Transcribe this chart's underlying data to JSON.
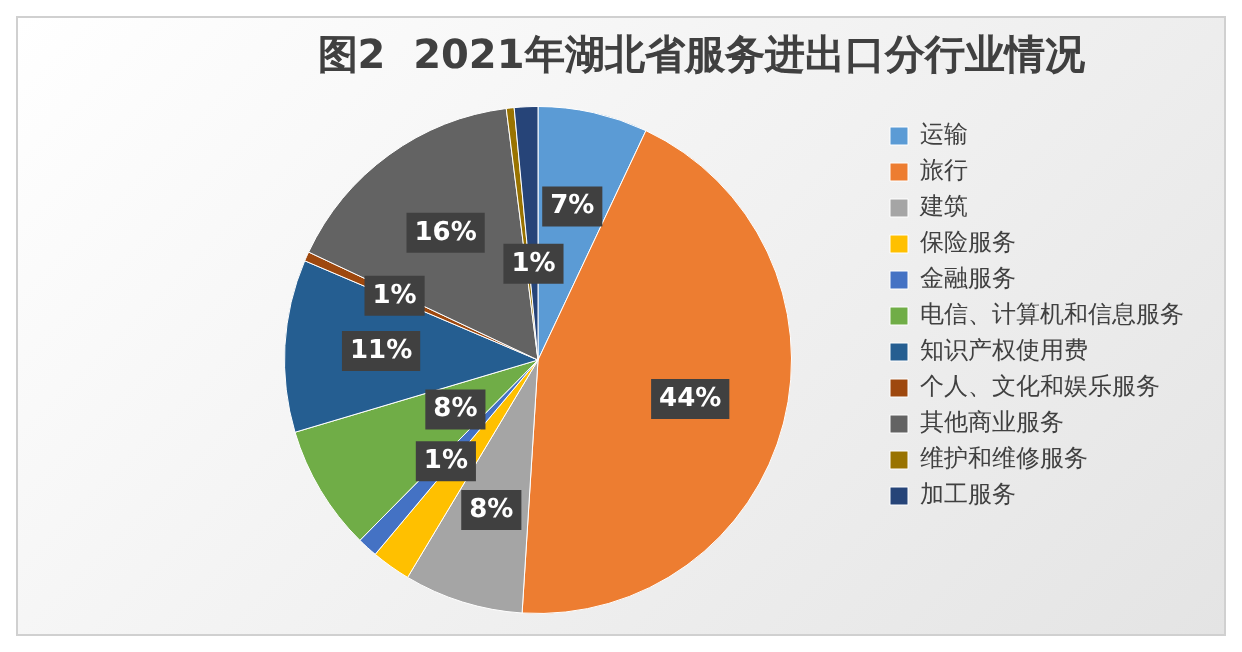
{
  "chart_data": {
    "type": "pie",
    "title": "图2  2021年湖北省服务进出口分行业情况",
    "categories": [
      "运输",
      "旅行",
      "建筑",
      "保险服务",
      "金融服务",
      "电信、计算机和信息服务",
      "知识产权使用费",
      "个人、文化和娱乐服务",
      "其他商业服务",
      "维护和维修服务",
      "加工服务"
    ],
    "values": [
      7,
      44,
      7.6,
      2.5,
      1.3,
      8,
      11,
      0.6,
      16,
      0.5,
      1.5
    ],
    "colors": [
      "#5b9bd5",
      "#ed7d31",
      "#a5a5a5",
      "#ffc000",
      "#4472c4",
      "#70ad47",
      "#255e91",
      "#9e480e",
      "#636363",
      "#997300",
      "#264478"
    ],
    "value_labels": [
      "7%",
      "44%",
      "8%",
      null,
      "1%",
      "8%",
      "11%",
      "1%",
      "16%",
      null,
      "1%"
    ],
    "legend": "right"
  }
}
